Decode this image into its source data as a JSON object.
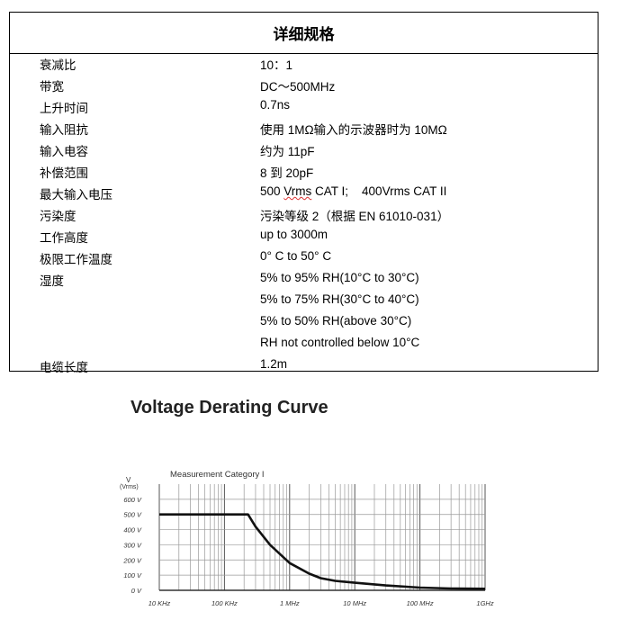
{
  "spec_table": {
    "title": "详细规格",
    "rows": [
      {
        "key": "衰减比",
        "value": "10：1"
      },
      {
        "key": "带宽",
        "value": "DC～500MHz"
      },
      {
        "key": "上升时间",
        "value": "0.7ns"
      },
      {
        "key": "输入阻抗",
        "value": "使用 1MΩ输入的示波器时为 10MΩ"
      },
      {
        "key": "输入电容",
        "value": "约为 11pF"
      },
      {
        "key": "补偿范围",
        "value": "8 到 20pF"
      },
      {
        "key": "最大输入电压",
        "value_pre": "500 ",
        "value_wavy": "Vrms",
        "value_post": " CAT I;    400Vrms CAT II"
      },
      {
        "key": "污染度",
        "value": "污染等级 2（根据 EN 61010-031）"
      },
      {
        "key": "工作高度",
        "value": "up to 3000m"
      },
      {
        "key": "极限工作温度",
        "value": "0° C to 50° C"
      },
      {
        "key": "湿度",
        "value": "5% to 95% RH(10°C to 30°C)"
      },
      {
        "key": "",
        "value": "5% to 75% RH(30°C to 40°C)"
      },
      {
        "key": "",
        "value": "5% to 50% RH(above 30°C)"
      },
      {
        "key": "",
        "value": "RH not controlled below 10°C"
      },
      {
        "key": "电缆长度",
        "value": "1.2m"
      }
    ]
  },
  "chart_data": {
    "type": "line",
    "title": "Voltage Derating Curve",
    "subtitle": "Measurement Category I",
    "ylabel_top": "V",
    "ylabel_sub": "(Vrms)",
    "xscale": "log",
    "xlim": [
      10000,
      1000000000
    ],
    "ylim": [
      0,
      700
    ],
    "grid": true,
    "xticks": [
      {
        "value": 10000,
        "label": "10 KHz"
      },
      {
        "value": 100000,
        "label": "100 KHz"
      },
      {
        "value": 1000000,
        "label": "1 MHz"
      },
      {
        "value": 10000000,
        "label": "10 MHz"
      },
      {
        "value": 100000000,
        "label": "100 MHz"
      },
      {
        "value": 1000000000,
        "label": "1GHz"
      }
    ],
    "yticks": [
      {
        "value": 0,
        "label": "0 V"
      },
      {
        "value": 100,
        "label": "100 V"
      },
      {
        "value": 200,
        "label": "200 V"
      },
      {
        "value": 300,
        "label": "300 V"
      },
      {
        "value": 400,
        "label": "400 V"
      },
      {
        "value": 500,
        "label": "500 V"
      },
      {
        "value": 600,
        "label": "600 V"
      }
    ],
    "series": [
      {
        "color": "#111111",
        "x": [
          10000,
          230000,
          300000,
          500000,
          1000000,
          2000000,
          3000000,
          5000000,
          10000000,
          30000000,
          100000000,
          300000000,
          1000000000
        ],
        "y": [
          500,
          500,
          420,
          300,
          180,
          110,
          80,
          62,
          50,
          32,
          18,
          12,
          10
        ]
      }
    ]
  }
}
